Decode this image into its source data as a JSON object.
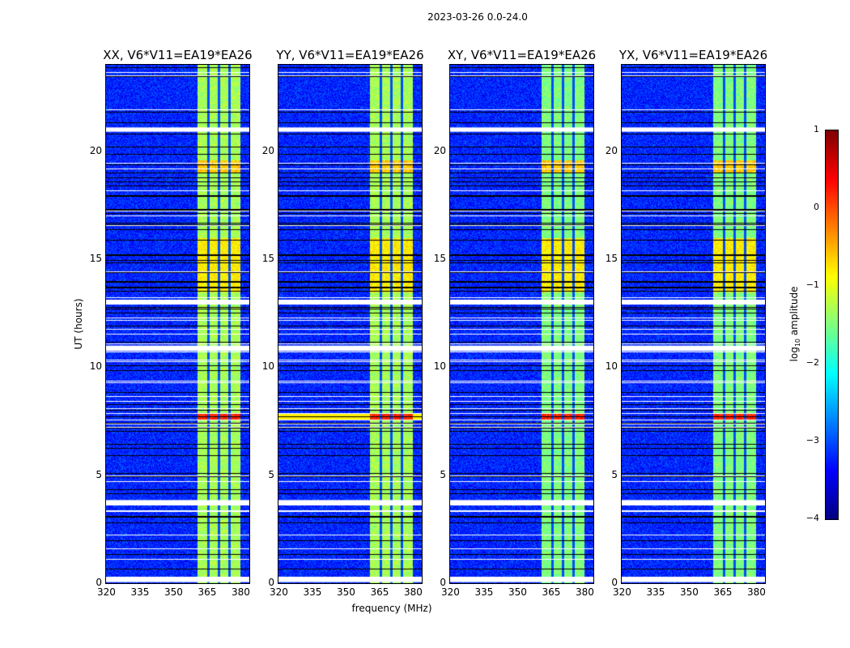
{
  "chart_data": {
    "type": "heatmap",
    "title": "2023-03-26 0.0-24.0",
    "panels": [
      {
        "title": "XX, V6*V11=EA19*EA26",
        "pol": "XX"
      },
      {
        "title": "YY, V6*V11=EA19*EA26",
        "pol": "YY"
      },
      {
        "title": "XY, V6*V11=EA19*EA26",
        "pol": "XY"
      },
      {
        "title": "YX, V6*V11=EA19*EA26",
        "pol": "YX"
      }
    ],
    "xlabel": "frequency (MHz)",
    "ylabel": "UT (hours)",
    "xlim": [
      320,
      384
    ],
    "ylim": [
      0,
      24
    ],
    "xticks": [
      "320",
      "335",
      "350",
      "365",
      "380"
    ],
    "xtick_values": [
      320,
      335,
      350,
      365,
      380
    ],
    "yticks": [
      "0",
      "5",
      "10",
      "15",
      "20"
    ],
    "ytick_values": [
      0,
      5,
      10,
      15,
      20
    ],
    "colorbar": {
      "label": "log10 amplitude",
      "label_main": "log",
      "label_sub": "10",
      "label_rest": " amplitude",
      "range": [
        -4,
        1
      ],
      "ticks": [
        "1",
        "0",
        "−1",
        "−2",
        "−3",
        "−4"
      ],
      "tick_values": [
        1,
        0,
        -1,
        -2,
        -3,
        -4
      ],
      "colormap": "jet"
    },
    "rfi_band_mhz": [
      360.5,
      380
    ],
    "subband_gaps_mhz": [
      365.5,
      370.2,
      374.9
    ],
    "flagged_gaps_ut": [
      [
        0.05,
        0.3
      ],
      [
        3.6,
        3.85
      ],
      [
        10.75,
        11.0
      ],
      [
        12.9,
        13.1
      ],
      [
        20.9,
        21.1
      ]
    ],
    "background_log_amp": -3.2,
    "band_log_amp": -1.5,
    "bright_events_ut": [
      [
        7.6,
        7.9,
        0.2
      ],
      [
        13.5,
        16.0,
        -0.8
      ],
      [
        19.0,
        19.6,
        -0.6
      ]
    ]
  }
}
